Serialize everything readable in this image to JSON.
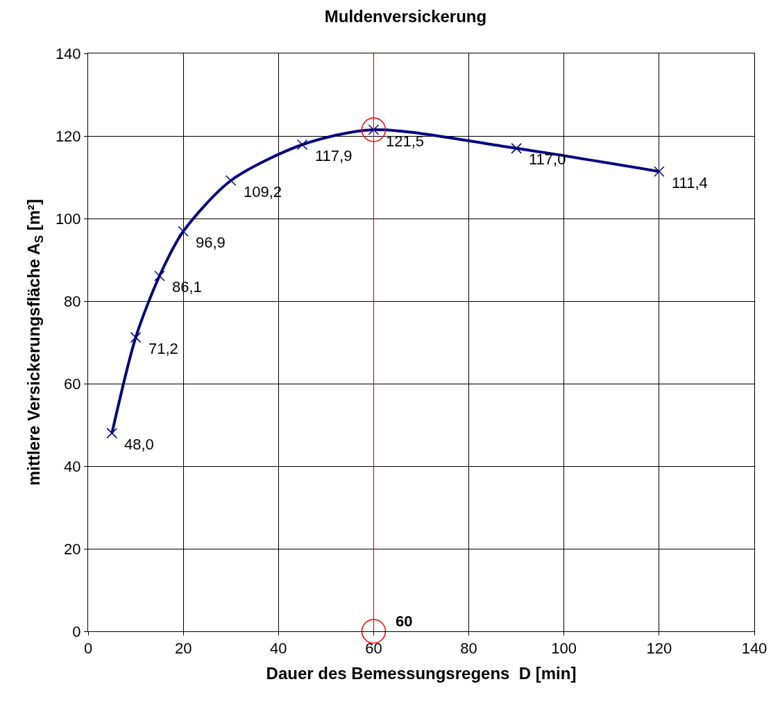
{
  "chart_data": {
    "type": "line",
    "title": "Muldenversickerung",
    "xlabel": "Dauer des Bemessungsregens  D [min]",
    "ylabel": "mittlere Versickerungsfläche A$_{S}$ [m²]",
    "x": [
      5,
      10,
      15,
      20,
      30,
      45,
      60,
      90,
      120
    ],
    "series": [
      {
        "color": "#000080",
        "values": [
          48.0,
          71.2,
          86.1,
          96.9,
          109.2,
          117.9,
          121.5,
          117.0,
          111.4
        ],
        "value_labels": [
          "48,0",
          "71,2",
          "86,1",
          "96,9",
          "109,2",
          "117,9",
          "121,5",
          "117,0",
          "111,4"
        ],
        "marker": "cross",
        "line_style": "solid"
      },
      {
        "type": "scatter",
        "x": [
          60,
          60
        ],
        "color": "#ff0000",
        "values": [
          121.5,
          0
        ],
        "marker": "circle"
      }
    ],
    "ref_lines": [
      {
        "axis": "x",
        "value": 60,
        "label": "60",
        "color": "#ff0000"
      }
    ],
    "xlim": [
      0,
      140
    ],
    "xticks": [
      0,
      20,
      40,
      60,
      80,
      100,
      120,
      140
    ],
    "ylim": [
      0,
      140
    ],
    "yticks": [
      0,
      20,
      40,
      60,
      80,
      100,
      120,
      140
    ],
    "grid": true
  }
}
